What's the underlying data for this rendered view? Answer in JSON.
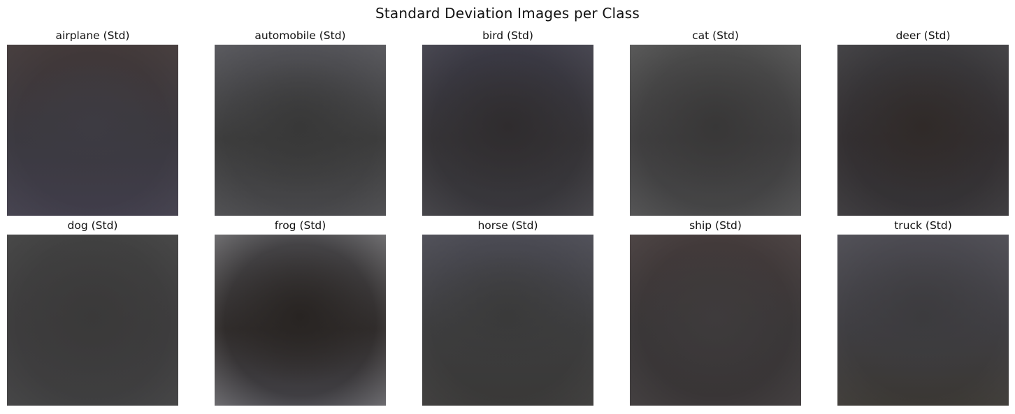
{
  "chart_data": {
    "type": "image_grid",
    "title": "Standard Deviation Images per Class",
    "rows": 2,
    "cols": 5,
    "axis": "off",
    "panels": [
      {
        "title": "airplane (Std)",
        "color_top": "#413838",
        "color_mid": "#3b3940",
        "color_bottom": "#403d4a",
        "center": "#3d3b42",
        "vignette": 0.05
      },
      {
        "title": "automobile (Std)",
        "color_top": "#515156",
        "color_mid": "#3c3c3c",
        "color_bottom": "#47474a",
        "center": "#383838",
        "vignette": 0.08
      },
      {
        "title": "bird (Std)",
        "color_top": "#3a3944",
        "color_mid": "#353336",
        "color_bottom": "#38373c",
        "center": "#2f2c2e",
        "vignette": 0.1
      },
      {
        "title": "cat (Std)",
        "color_top": "#4a4a4a",
        "color_mid": "#3f3e3f",
        "color_bottom": "#454546",
        "center": "#383737",
        "vignette": 0.12
      },
      {
        "title": "deer (Std)",
        "color_top": "#3a393c",
        "color_mid": "#332f31",
        "color_bottom": "#353336",
        "center": "#302a28",
        "vignette": 0.08
      },
      {
        "title": "dog (Std)",
        "color_top": "#404040",
        "color_mid": "#3d3c3d",
        "color_bottom": "#3e3e3f",
        "center": "#3a3939",
        "vignette": 0.06
      },
      {
        "title": "frog (Std)",
        "color_top": "#464548",
        "color_mid": "#302c2b",
        "color_bottom": "#424146",
        "center": "#282422",
        "vignette": 0.3
      },
      {
        "title": "horse (Std)",
        "color_top": "#4a4a53",
        "color_mid": "#3d3d3e",
        "color_bottom": "#393837",
        "center": "#3a3a3a",
        "vignette": 0.06
      },
      {
        "title": "ship (Std)",
        "color_top": "#433a3a",
        "color_mid": "#3a3738",
        "color_bottom": "#393536",
        "center": "#3e3b3c",
        "vignette": 0.08
      },
      {
        "title": "truck (Std)",
        "color_top": "#4b4a51",
        "color_mid": "#3f3e42",
        "color_bottom": "#3a3733",
        "center": "#3c3b3e",
        "vignette": 0.06
      }
    ]
  }
}
